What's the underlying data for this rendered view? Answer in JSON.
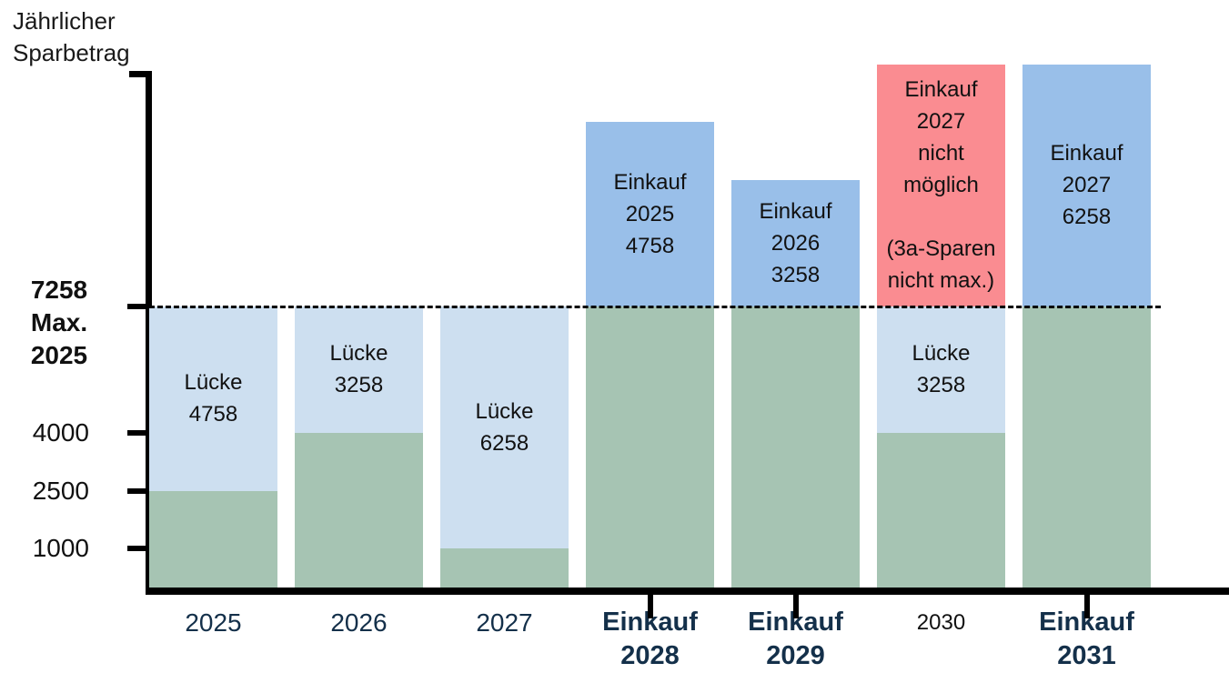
{
  "chart_data": {
    "type": "bar",
    "stacked": true,
    "title": "Jährlicher\nSparbetrag",
    "ylim": [
      0,
      13700
    ],
    "grid": false,
    "legend": "none",
    "reference_line": {
      "value": 7258,
      "style": "dashed",
      "label_lines": [
        "7258",
        "Max. 2025"
      ]
    },
    "y_axis": {
      "ticks": [
        {
          "value": 4000,
          "label": "4000"
        },
        {
          "value": 2500,
          "label": "2500"
        },
        {
          "value": 1000,
          "label": "1000"
        }
      ]
    },
    "colors": {
      "saving_green": "#a6c4b3",
      "gap_lightblue": "#cddff0",
      "purchase_blue": "#99bfe9",
      "blocked_red": "#fa8c91",
      "axis_black": "#000000",
      "label_navy": "#14304a",
      "text_black": "#111111"
    },
    "bars": [
      {
        "category_lines": [
          "2025"
        ],
        "category_style": "year",
        "axis_tick": false,
        "segments": [
          {
            "name": "sparen",
            "value": 2500,
            "color": "saving_green"
          },
          {
            "name": "luecke",
            "value": 4758,
            "color": "gap_lightblue",
            "label_lines": [
              "Lücke",
              "4758"
            ]
          }
        ]
      },
      {
        "category_lines": [
          "2026"
        ],
        "category_style": "year",
        "axis_tick": false,
        "segments": [
          {
            "name": "sparen",
            "value": 4000,
            "color": "saving_green"
          },
          {
            "name": "luecke",
            "value": 3258,
            "color": "gap_lightblue",
            "label_lines": [
              "Lücke",
              "3258"
            ]
          }
        ]
      },
      {
        "category_lines": [
          "2027"
        ],
        "category_style": "year",
        "axis_tick": false,
        "segments": [
          {
            "name": "sparen",
            "value": 1000,
            "color": "saving_green"
          },
          {
            "name": "luecke",
            "value": 6258,
            "color": "gap_lightblue",
            "label_lines": [
              "Lücke",
              "6258"
            ]
          }
        ]
      },
      {
        "category_lines": [
          "Einkauf",
          "2028"
        ],
        "category_style": "einkauf",
        "axis_tick": true,
        "segments": [
          {
            "name": "sparen",
            "value": 7258,
            "color": "saving_green"
          },
          {
            "name": "einkauf",
            "value": 4758,
            "color": "purchase_blue",
            "label_lines": [
              "Einkauf",
              "2025",
              "4758"
            ]
          }
        ]
      },
      {
        "category_lines": [
          "Einkauf",
          "2029"
        ],
        "category_style": "einkauf",
        "axis_tick": true,
        "segments": [
          {
            "name": "sparen",
            "value": 7258,
            "color": "saving_green"
          },
          {
            "name": "einkauf",
            "value": 3258,
            "color": "purchase_blue",
            "label_lines": [
              "Einkauf",
              "2026",
              "3258"
            ]
          }
        ]
      },
      {
        "category_lines": [
          "2030"
        ],
        "category_style": "year-small",
        "axis_tick": false,
        "segments": [
          {
            "name": "sparen",
            "value": 4000,
            "color": "saving_green"
          },
          {
            "name": "luecke",
            "value": 3258,
            "color": "gap_lightblue",
            "label_lines": [
              "Lücke",
              "3258"
            ]
          },
          {
            "name": "einkauf-blocked",
            "value": 6258,
            "color": "blocked_red",
            "label_lines": [
              "Einkauf",
              "2027",
              "nicht",
              "möglich",
              "",
              "(3a-Sparen",
              "nicht max.)"
            ]
          }
        ]
      },
      {
        "category_lines": [
          "Einkauf",
          "2031"
        ],
        "category_style": "einkauf",
        "axis_tick": true,
        "segments": [
          {
            "name": "sparen",
            "value": 7258,
            "color": "saving_green"
          },
          {
            "name": "einkauf",
            "value": 6258,
            "color": "purchase_blue",
            "label_lines": [
              "Einkauf",
              "2027",
              "6258"
            ]
          }
        ]
      }
    ]
  }
}
